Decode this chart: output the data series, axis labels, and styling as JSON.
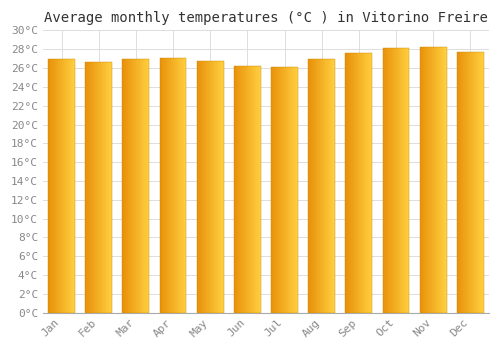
{
  "title": "Average monthly temperatures (°C ) in Vitorino Freire",
  "months": [
    "Jan",
    "Feb",
    "Mar",
    "Apr",
    "May",
    "Jun",
    "Jul",
    "Aug",
    "Sep",
    "Oct",
    "Nov",
    "Dec"
  ],
  "values": [
    27.0,
    26.6,
    27.0,
    27.1,
    26.7,
    26.2,
    26.1,
    27.0,
    27.6,
    28.1,
    28.2,
    27.7
  ],
  "bar_color_left": "#E8910A",
  "bar_color_right": "#FFD040",
  "background_color": "#FFFFFF",
  "plot_bg_color": "#FFFFFF",
  "grid_color": "#DDDDDD",
  "ylim": [
    0,
    30
  ],
  "ytick_step": 2,
  "title_fontsize": 10,
  "tick_fontsize": 8,
  "tick_font": "monospace"
}
